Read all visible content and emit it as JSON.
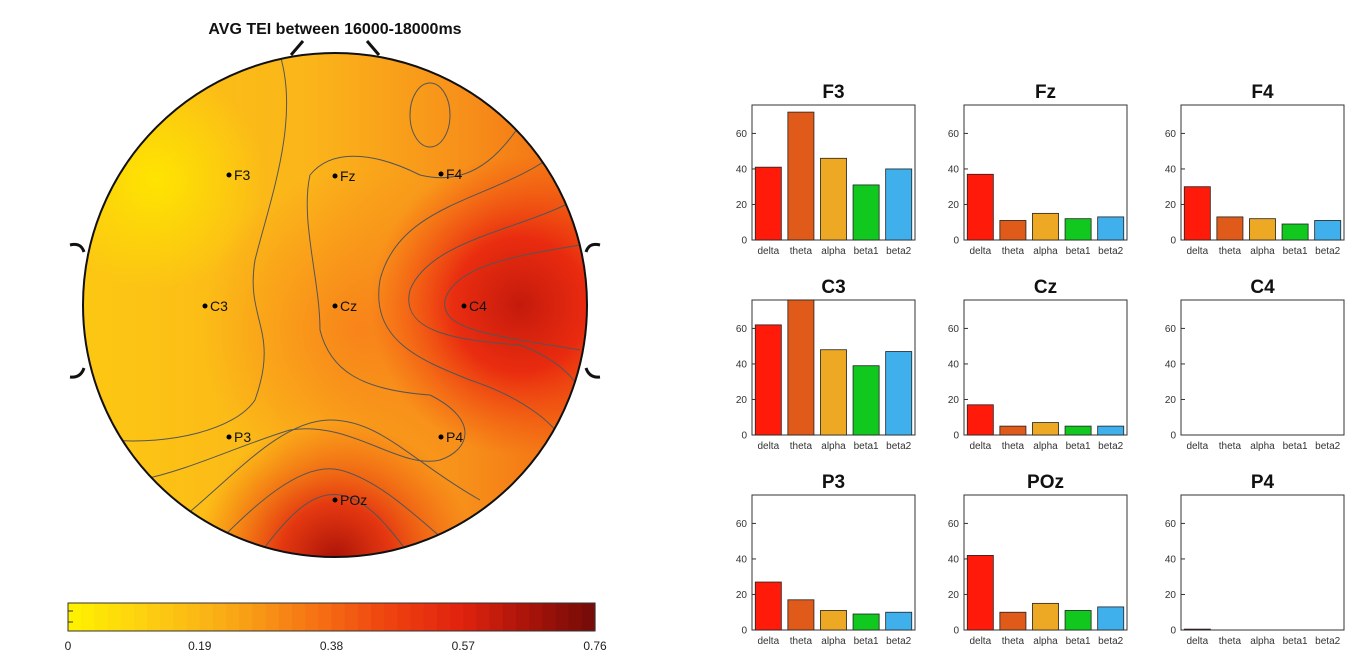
{
  "chart_data": [
    {
      "type": "heatmap",
      "title": "AVG TEI between 16000-18000ms",
      "colorbar": {
        "min": 0,
        "max": 0.76,
        "ticks": [
          "0",
          "0.19",
          "0.38",
          "0.57",
          "0.76"
        ]
      },
      "electrodes": [
        {
          "label": "F3",
          "value": 0.04
        },
        {
          "label": "Fz",
          "value": 0.25
        },
        {
          "label": "F4",
          "value": 0.22
        },
        {
          "label": "C3",
          "value": 0.12
        },
        {
          "label": "Cz",
          "value": 0.28
        },
        {
          "label": "C4",
          "value": 0.62
        },
        {
          "label": "P3",
          "value": 0.14
        },
        {
          "label": "P4",
          "value": 0.42
        },
        {
          "label": "POz",
          "value": 0.47
        }
      ]
    },
    {
      "type": "bar",
      "categories": [
        "delta",
        "theta",
        "alpha",
        "beta1",
        "beta2"
      ],
      "bar_colors": [
        "#ff1a0a",
        "#e05a1a",
        "#eda824",
        "#11c81e",
        "#3fb0ec"
      ],
      "ylim": [
        0,
        76
      ],
      "yticks": [
        "0",
        "20",
        "40",
        "60"
      ],
      "panels": [
        {
          "title": "F3",
          "values": [
            41,
            72,
            46,
            31,
            40
          ]
        },
        {
          "title": "Fz",
          "values": [
            37,
            11,
            15,
            12,
            13
          ]
        },
        {
          "title": "F4",
          "values": [
            30,
            13,
            12,
            9,
            11
          ]
        },
        {
          "title": "C3",
          "values": [
            62,
            76,
            48,
            39,
            47
          ]
        },
        {
          "title": "Cz",
          "values": [
            17,
            5,
            7,
            5,
            5
          ]
        },
        {
          "title": "C4",
          "values": [
            0,
            0,
            0,
            0,
            0
          ]
        },
        {
          "title": "P3",
          "values": [
            27,
            17,
            11,
            9,
            10
          ]
        },
        {
          "title": "POz",
          "values": [
            42,
            10,
            15,
            11,
            13
          ]
        },
        {
          "title": "P4",
          "values": [
            0.5,
            0,
            0,
            0,
            0
          ]
        }
      ]
    }
  ]
}
